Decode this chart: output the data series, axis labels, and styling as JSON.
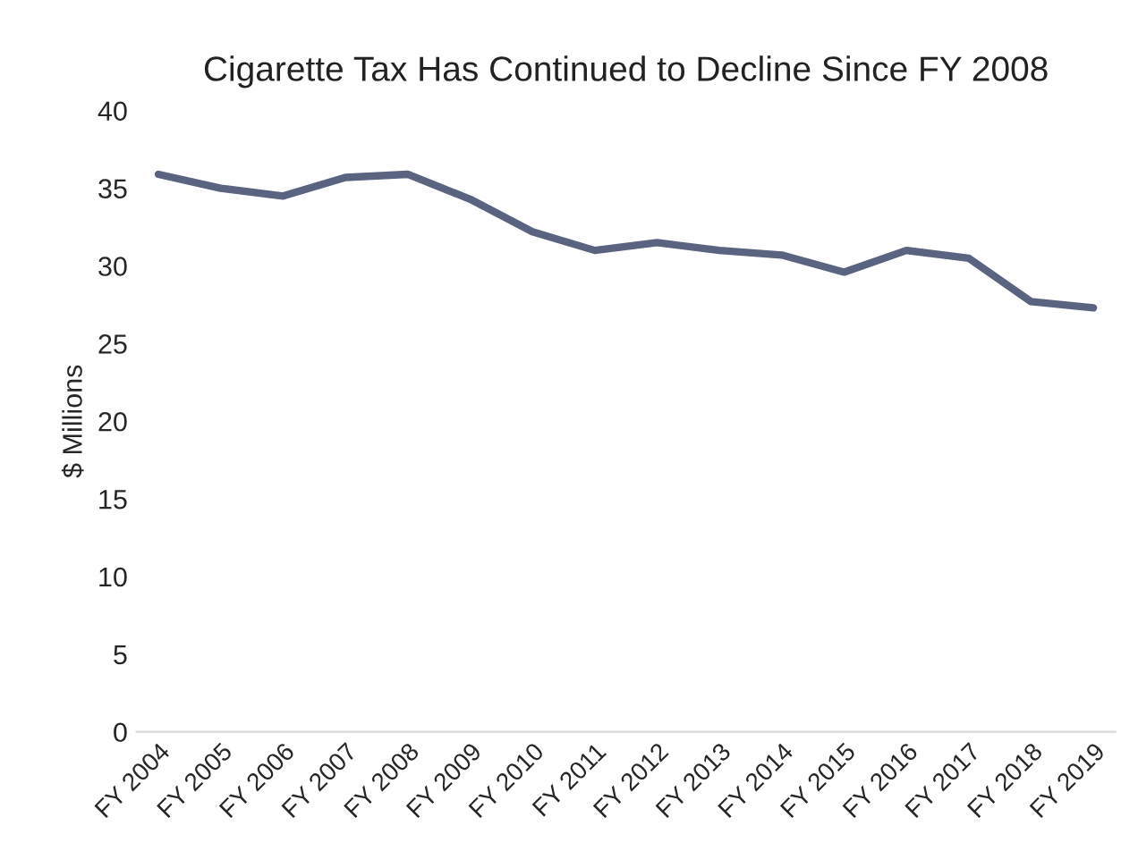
{
  "chart_data": {
    "type": "line",
    "title": "Cigarette Tax Has Continued to Decline Since FY 2008",
    "ylabel": "$ Millions",
    "categories": [
      "FY 2004",
      "FY 2005",
      "FY 2006",
      "FY 2007",
      "FY 2008",
      "FY 2009",
      "FY 2010",
      "FY 2011",
      "FY 2012",
      "FY 2013",
      "FY 2014",
      "FY 2015",
      "FY 2016",
      "FY 2017",
      "FY 2018",
      "FY 2019"
    ],
    "series": [
      {
        "color": "#5a6480",
        "values": [
          35.9,
          35.0,
          34.5,
          35.7,
          35.9,
          34.3,
          32.2,
          31.0,
          31.5,
          31.0,
          30.7,
          29.6,
          31.0,
          30.5,
          27.7,
          27.3
        ]
      }
    ],
    "ylim": [
      0,
      40
    ],
    "yticks": [
      0,
      5,
      10,
      15,
      20,
      25,
      30,
      35,
      40
    ],
    "grid": false,
    "legend": false
  }
}
